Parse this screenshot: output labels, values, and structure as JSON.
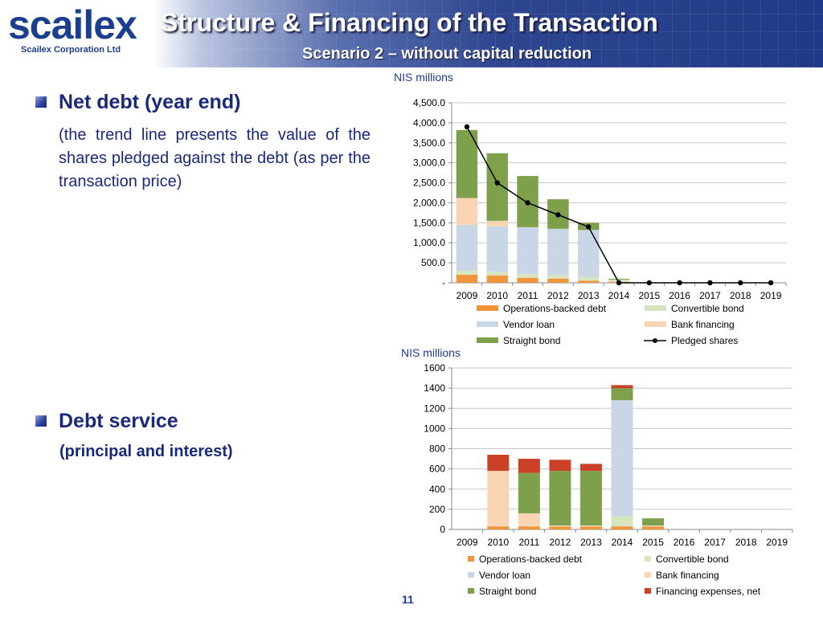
{
  "header": {
    "logo_text": "scailex",
    "logo_subtitle": "Scailex Corporation Ltd",
    "title": "Structure & Financing of the Transaction",
    "subtitle": "Scenario 2 – without capital reduction"
  },
  "left": {
    "section1_heading": "Net debt (year end)",
    "section1_text": "(the trend line presents the value of the shares pledged against the debt (as per the transaction price)",
    "section2_heading": "Debt service",
    "section2_text": "(principal and interest)"
  },
  "page_number": "11",
  "colors": {
    "operations_backed_debt": "#f0953a",
    "convertible_bond": "#d6e5bf",
    "vendor_loan": "#c9d6e6",
    "bank_financing": "#f9d5b3",
    "straight_bond": "#7fa04a",
    "financing_expenses": "#cb4128",
    "pledged_line": "#000000",
    "text_blue": "#1a2a7a"
  },
  "chart_data": [
    {
      "type": "bar",
      "stacked": true,
      "unit_label": "NIS millions",
      "categories": [
        "2009",
        "2010",
        "2011",
        "2012",
        "2013",
        "2014",
        "2015",
        "2016",
        "2017",
        "2018",
        "2019"
      ],
      "ylim": [
        0,
        4500
      ],
      "y_ticks": [
        0,
        500,
        1000,
        1500,
        2000,
        2500,
        3000,
        3500,
        4000,
        4500
      ],
      "y_tick_labels": [
        "-",
        "500.0",
        "1,000.0",
        "1,500.0",
        "2,000.0",
        "2,500.0",
        "3,000.0",
        "3,500.0",
        "4,000.0",
        "4,500.0"
      ],
      "grid": true,
      "legend_position": "bottom",
      "series": [
        {
          "name": "Operations-backed debt",
          "color": "#f0953a",
          "values": [
            200,
            180,
            120,
            100,
            50,
            20,
            0,
            0,
            0,
            0,
            0
          ]
        },
        {
          "name": "Convertible bond",
          "color": "#d6e5bf",
          "values": [
            100,
            100,
            110,
            100,
            100,
            60,
            0,
            0,
            0,
            0,
            0
          ]
        },
        {
          "name": "Vendor loan",
          "color": "#c9d6e6",
          "values": [
            1150,
            1130,
            1160,
            1150,
            1170,
            0,
            0,
            0,
            0,
            0,
            0
          ]
        },
        {
          "name": "Bank financing",
          "color": "#f9d5b3",
          "values": [
            670,
            140,
            0,
            0,
            0,
            0,
            0,
            0,
            0,
            0,
            0
          ]
        },
        {
          "name": "Straight bond",
          "color": "#7fa04a",
          "values": [
            1700,
            1690,
            1280,
            740,
            180,
            20,
            0,
            0,
            0,
            0,
            0
          ]
        }
      ],
      "line_series": {
        "name": "Pledged shares",
        "color": "#000000",
        "values": [
          3900,
          2500,
          2000,
          1700,
          1400,
          0,
          0,
          0,
          0,
          0,
          0
        ]
      },
      "legend_order": [
        "Operations-backed debt",
        "Convertible bond",
        "Vendor loan",
        "Bank financing",
        "Straight bond",
        "Pledged shares"
      ]
    },
    {
      "type": "bar",
      "stacked": true,
      "unit_label": "NIS millions",
      "categories": [
        "2009",
        "2010",
        "2011",
        "2012",
        "2013",
        "2014",
        "2015",
        "2016",
        "2017",
        "2018",
        "2019"
      ],
      "ylim": [
        0,
        1600
      ],
      "y_ticks": [
        0,
        200,
        400,
        600,
        800,
        1000,
        1200,
        1400,
        1600
      ],
      "y_tick_labels": [
        "0",
        "200",
        "400",
        "600",
        "800",
        "1000",
        "1200",
        "1400",
        "1600"
      ],
      "grid": true,
      "legend_position": "bottom",
      "series": [
        {
          "name": "Operations-backed debt",
          "color": "#f0953a",
          "values": [
            0,
            30,
            30,
            30,
            30,
            30,
            30,
            0,
            0,
            0,
            0
          ]
        },
        {
          "name": "Convertible bond",
          "color": "#d6e5bf",
          "values": [
            0,
            0,
            0,
            10,
            10,
            100,
            10,
            0,
            0,
            0,
            0
          ]
        },
        {
          "name": "Vendor loan",
          "color": "#c9d6e6",
          "values": [
            0,
            0,
            0,
            0,
            0,
            1150,
            0,
            0,
            0,
            0,
            0
          ]
        },
        {
          "name": "Bank financing",
          "color": "#f9d5b3",
          "values": [
            0,
            550,
            130,
            0,
            0,
            0,
            0,
            0,
            0,
            0,
            0
          ]
        },
        {
          "name": "Straight bond",
          "color": "#7fa04a",
          "values": [
            0,
            0,
            400,
            540,
            540,
            120,
            70,
            0,
            0,
            0,
            0
          ]
        },
        {
          "name": "Financing expenses, net",
          "color": "#cb4128",
          "values": [
            0,
            160,
            140,
            110,
            70,
            30,
            0,
            0,
            0,
            0,
            0
          ]
        }
      ],
      "legend_order": [
        "Operations-backed debt",
        "Convertible bond",
        "Vendor loan",
        "Bank financing",
        "Straight bond",
        "Financing expenses, net"
      ]
    }
  ]
}
